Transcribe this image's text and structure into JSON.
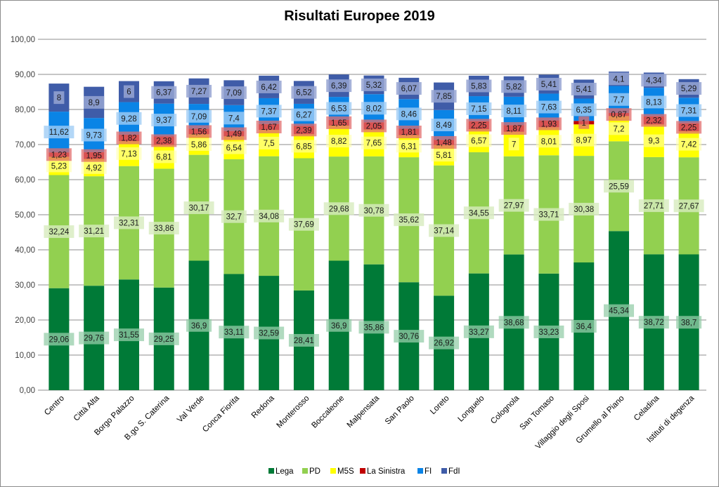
{
  "chart_data": {
    "type": "bar",
    "stacked": true,
    "title": "Risultati Europee 2019",
    "xlabel": "",
    "ylabel": "",
    "ylim": [
      0,
      100
    ],
    "yticks": [
      "0,00",
      "10,00",
      "20,00",
      "30,00",
      "40,00",
      "50,00",
      "60,00",
      "70,00",
      "80,00",
      "90,00",
      "100,00"
    ],
    "grid": true,
    "legend_position": "bottom",
    "categories": [
      "Centro",
      "Città Alta",
      "Borgo Palazzo",
      "B.go S. Caterina",
      "Val Verde",
      "Conca Fiorita",
      "Redona",
      "Monterosso",
      "Boccaleone",
      "Malpensata",
      "San Paolo",
      "Loreto",
      "Longuelo",
      "Colognola",
      "San Tomaso",
      "Villaggio degli Sposi",
      "Grumello al Piano",
      "Celadina",
      "Istituti di degenza"
    ],
    "series": [
      {
        "name": "Lega",
        "color": "#007a37",
        "values": [
          29.06,
          29.76,
          31.55,
          29.25,
          36.9,
          33.11,
          32.59,
          28.41,
          36.9,
          35.86,
          30.76,
          26.92,
          33.27,
          38.68,
          33.23,
          36.4,
          45.34,
          38.72,
          38.7
        ],
        "labels": [
          "29,06",
          "29,76",
          "31,55",
          "29,25",
          "36,9",
          "33,11",
          "32,59",
          "28,41",
          "36,9",
          "35,86",
          "30,76",
          "26,92",
          "33,27",
          "38,68",
          "33,23",
          "36,4",
          "45,34",
          "38,72",
          "38,7"
        ]
      },
      {
        "name": "PD",
        "color": "#92d050",
        "values": [
          32.24,
          31.21,
          32.31,
          33.86,
          30.17,
          32.7,
          34.08,
          37.69,
          29.68,
          30.78,
          35.62,
          37.14,
          34.55,
          27.97,
          33.71,
          30.38,
          25.59,
          27.71,
          27.67
        ],
        "labels": [
          "32,24",
          "31,21",
          "32,31",
          "33,86",
          "30,17",
          "32,7",
          "34,08",
          "37,69",
          "29,68",
          "30,78",
          "35,62",
          "37,14",
          "34,55",
          "27,97",
          "33,71",
          "30,38",
          "25,59",
          "27,71",
          "27,67"
        ]
      },
      {
        "name": "M5S",
        "color": "#ffff00",
        "values": [
          5.23,
          4.92,
          7.13,
          6.81,
          5.86,
          6.54,
          7.5,
          6.85,
          8.82,
          7.65,
          6.31,
          5.81,
          6.57,
          7,
          8.01,
          8.97,
          7.2,
          9.3,
          7.42
        ],
        "labels": [
          "5,23",
          "4,92",
          "7,13",
          "6,81",
          "5,86",
          "6,54",
          "7,5",
          "6,85",
          "8,82",
          "7,65",
          "6,31",
          "5,81",
          "6,57",
          "7",
          "8,01",
          "8,97",
          "7,2",
          "9,3",
          "7,42"
        ]
      },
      {
        "name": "La Sinistra",
        "color": "#c00000",
        "values": [
          1.23,
          1.95,
          1.82,
          2.38,
          1.56,
          1.49,
          1.67,
          2.39,
          1.65,
          2.05,
          1.81,
          1.48,
          2.25,
          1.87,
          1.93,
          1,
          0.87,
          2.32,
          2.25
        ],
        "labels": [
          "1,23",
          "1,95",
          "1,82",
          "2,38",
          "1,56",
          "1,49",
          "1,67",
          "2,39",
          "1,65",
          "2,05",
          "1,81",
          "1,48",
          "2,25",
          "1,87",
          "1,93",
          "1",
          "0,87",
          "2,32",
          "2,25"
        ]
      },
      {
        "name": "FI",
        "color": "#0a84e6",
        "values": [
          11.62,
          9.73,
          9.28,
          9.37,
          7.09,
          7.4,
          7.37,
          6.27,
          6.53,
          8.02,
          8.46,
          8.49,
          7.15,
          8.11,
          7.63,
          6.35,
          7.7,
          8.13,
          7.31
        ],
        "labels": [
          "11,62",
          "9,73",
          "9,28",
          "9,37",
          "7,09",
          "7,4",
          "7,37",
          "6,27",
          "6,53",
          "8,02",
          "8,46",
          "8,49",
          "7,15",
          "8,11",
          "7,63",
          "6,35",
          "7,7",
          "8,13",
          "7,31"
        ]
      },
      {
        "name": "FdI",
        "color": "#3f5ca8",
        "values": [
          8,
          8.9,
          6,
          6.37,
          7.27,
          7.09,
          6.42,
          6.52,
          6.39,
          5.32,
          6.07,
          7.85,
          5.83,
          5.82,
          5.41,
          5.41,
          4.1,
          4.34,
          5.29
        ],
        "labels": [
          "8",
          "8,9",
          "6",
          "6,37",
          "7,27",
          "7,09",
          "6,42",
          "6,52",
          "6,39",
          "5,32",
          "6,07",
          "7,85",
          "5,83",
          "5,82",
          "5,41",
          "5,41",
          "4,1",
          "4,34",
          "5,29"
        ]
      }
    ]
  }
}
